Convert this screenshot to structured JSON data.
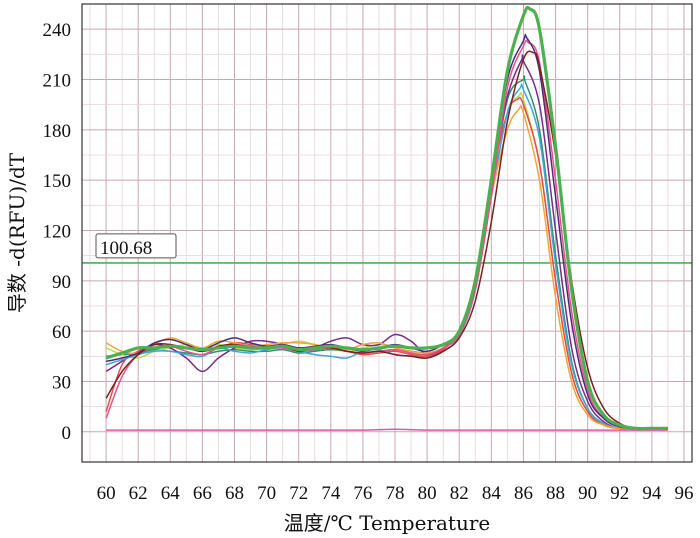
{
  "chart_data": {
    "type": "line",
    "title": "",
    "xlabel": "温度/℃ Temperature",
    "ylabel": "导数 -d(RFU)/dT",
    "xlim": [
      58.5,
      96.5
    ],
    "ylim": [
      -18,
      255
    ],
    "x_ticks": [
      60,
      62,
      64,
      66,
      68,
      70,
      72,
      74,
      76,
      78,
      80,
      82,
      84,
      86,
      88,
      90,
      92,
      94,
      96
    ],
    "y_ticks": [
      0,
      30,
      60,
      90,
      120,
      150,
      180,
      210,
      240
    ],
    "grid": true,
    "threshold": {
      "value": 100.68,
      "label": "100.68",
      "color": "#4caf50"
    },
    "series": [
      {
        "color": "#4caf50",
        "width": 3.2,
        "x": [
          60,
          61,
          62,
          63,
          64,
          65,
          66,
          67,
          68,
          69,
          70,
          71,
          72,
          73,
          74,
          75,
          76,
          77,
          78,
          79,
          80,
          81,
          82,
          83,
          84,
          85,
          86,
          86.4,
          87,
          88,
          89,
          90,
          91,
          92,
          93,
          94,
          95
        ],
        "y": [
          44,
          47,
          50,
          50,
          51,
          50,
          49,
          50,
          51,
          50,
          50,
          51,
          49,
          50,
          51,
          50,
          49,
          50,
          51,
          50,
          50,
          52,
          60,
          90,
          150,
          215,
          248,
          252,
          240,
          170,
          85,
          30,
          10,
          4,
          2,
          2,
          2
        ]
      },
      {
        "color": "#7b1f1f",
        "width": 1.5,
        "x": [
          60,
          61,
          62,
          63,
          64,
          65,
          66,
          67,
          68,
          69,
          70,
          71,
          72,
          73,
          74,
          75,
          76,
          77,
          78,
          79,
          80,
          81,
          82,
          83,
          84,
          85,
          86,
          86.6,
          87,
          88,
          89,
          90,
          91,
          92,
          93,
          94,
          95
        ],
        "y": [
          20,
          36,
          46,
          52,
          52,
          50,
          48,
          51,
          52,
          50,
          50,
          51,
          48,
          50,
          50,
          48,
          47,
          48,
          46,
          45,
          44,
          48,
          56,
          78,
          125,
          185,
          222,
          226,
          218,
          165,
          90,
          38,
          14,
          5,
          2,
          2,
          2
        ]
      },
      {
        "color": "#4a2c7a",
        "width": 1.5,
        "x": [
          60,
          61,
          62,
          63,
          64,
          65,
          66,
          67,
          68,
          69,
          70,
          71,
          72,
          73,
          74,
          75,
          76,
          77,
          78,
          79,
          80,
          81,
          82,
          83,
          84,
          85,
          86,
          86.2,
          87,
          88,
          89,
          90,
          91,
          92,
          93,
          94,
          95
        ],
        "y": [
          42,
          44,
          47,
          53,
          55,
          52,
          49,
          53,
          56,
          53,
          51,
          52,
          50,
          51,
          52,
          50,
          48,
          50,
          52,
          50,
          48,
          52,
          60,
          88,
          150,
          210,
          233,
          235,
          215,
          140,
          65,
          22,
          8,
          3,
          2,
          2,
          2
        ]
      },
      {
        "color": "#e8508a",
        "width": 1.5,
        "x": [
          60,
          61,
          62,
          63,
          64,
          65,
          66,
          67,
          68,
          69,
          70,
          71,
          72,
          73,
          74,
          75,
          76,
          77,
          78,
          79,
          80,
          81,
          82,
          83,
          84,
          85,
          86,
          86.3,
          87,
          88,
          89,
          90,
          91,
          92,
          93,
          94,
          95
        ],
        "y": [
          8,
          33,
          46,
          50,
          51,
          48,
          46,
          50,
          52,
          51,
          50,
          50,
          48,
          49,
          50,
          48,
          47,
          48,
          49,
          47,
          46,
          50,
          58,
          85,
          140,
          205,
          230,
          232,
          220,
          150,
          72,
          25,
          8,
          3,
          2,
          2,
          2
        ]
      },
      {
        "color": "#f2a43a",
        "width": 1.5,
        "x": [
          60,
          61,
          62,
          63,
          64,
          65,
          66,
          67,
          68,
          69,
          70,
          71,
          72,
          73,
          74,
          75,
          76,
          77,
          78,
          79,
          80,
          81,
          82,
          83,
          84,
          85,
          85.7,
          86,
          87,
          88,
          89,
          90,
          91,
          92,
          93,
          94,
          95
        ],
        "y": [
          53,
          48,
          47,
          52,
          56,
          53,
          50,
          54,
          53,
          51,
          52,
          53,
          53,
          52,
          50,
          49,
          52,
          53,
          50,
          48,
          47,
          50,
          58,
          85,
          140,
          180,
          192,
          190,
          150,
          80,
          30,
          10,
          4,
          2,
          2,
          2,
          2
        ]
      },
      {
        "color": "#3aa8d8",
        "width": 1.5,
        "x": [
          60,
          61,
          62,
          63,
          64,
          65,
          66,
          67,
          68,
          69,
          70,
          71,
          72,
          73,
          74,
          75,
          76,
          77,
          78,
          79,
          80,
          81,
          82,
          83,
          84,
          85,
          85.8,
          86,
          87,
          88,
          89,
          90,
          91,
          92,
          93,
          94,
          95
        ],
        "y": [
          40,
          43,
          46,
          48,
          48,
          46,
          45,
          50,
          48,
          47,
          49,
          50,
          48,
          46,
          45,
          44,
          48,
          49,
          46,
          45,
          44,
          48,
          57,
          84,
          140,
          190,
          205,
          204,
          175,
          100,
          40,
          14,
          5,
          2,
          2,
          2,
          2
        ]
      },
      {
        "color": "#e84a4a",
        "width": 1.5,
        "x": [
          60,
          61,
          62,
          63,
          64,
          65,
          66,
          67,
          68,
          69,
          70,
          71,
          72,
          73,
          74,
          75,
          76,
          77,
          78,
          79,
          80,
          81,
          82,
          83,
          84,
          85,
          85.6,
          86,
          87,
          88,
          89,
          90,
          91,
          92,
          93,
          94,
          95
        ],
        "y": [
          12,
          40,
          48,
          50,
          51,
          50,
          48,
          50,
          53,
          52,
          50,
          51,
          50,
          49,
          50,
          48,
          46,
          47,
          48,
          46,
          45,
          49,
          60,
          92,
          150,
          190,
          198,
          195,
          160,
          90,
          35,
          12,
          4,
          2,
          2,
          2,
          2
        ]
      },
      {
        "color": "#7a2a8a",
        "width": 1.5,
        "x": [
          60,
          61,
          62,
          63,
          64,
          65,
          66,
          67,
          68,
          69,
          70,
          71,
          72,
          73,
          74,
          75,
          76,
          77,
          78,
          79,
          80,
          81,
          82,
          83,
          84,
          85,
          85.9,
          86,
          87,
          88,
          89,
          90,
          91,
          92,
          93,
          94,
          95
        ],
        "y": [
          36,
          42,
          48,
          52,
          50,
          44,
          36,
          44,
          50,
          54,
          54,
          52,
          48,
          50,
          54,
          56,
          52,
          52,
          58,
          54,
          46,
          50,
          60,
          90,
          150,
          200,
          222,
          221,
          195,
          120,
          50,
          18,
          6,
          2,
          2,
          2,
          2
        ]
      },
      {
        "color": "#b8d94a",
        "width": 1.5,
        "x": [
          60,
          61,
          62,
          63,
          64,
          65,
          66,
          67,
          68,
          69,
          70,
          71,
          72,
          73,
          74,
          75,
          76,
          77,
          78,
          79,
          80,
          81,
          82,
          83,
          84,
          85,
          85.7,
          86,
          87,
          88,
          89,
          90,
          91,
          92,
          93,
          94,
          95
        ],
        "y": [
          50,
          46,
          44,
          48,
          50,
          52,
          50,
          52,
          50,
          49,
          50,
          52,
          54,
          52,
          50,
          48,
          50,
          52,
          50,
          47,
          46,
          50,
          60,
          92,
          148,
          190,
          200,
          198,
          160,
          90,
          35,
          12,
          4,
          2,
          2,
          2,
          2
        ]
      },
      {
        "color": "#2f8f6f",
        "width": 1.5,
        "x": [
          60,
          61,
          62,
          63,
          64,
          65,
          66,
          67,
          68,
          69,
          70,
          71,
          72,
          73,
          74,
          75,
          76,
          77,
          78,
          79,
          80,
          81,
          82,
          83,
          84,
          85,
          86,
          86.1,
          87,
          88,
          89,
          90,
          91,
          92,
          93,
          94,
          95
        ],
        "y": [
          45,
          46,
          47,
          49,
          48,
          47,
          46,
          48,
          49,
          48,
          48,
          49,
          47,
          48,
          49,
          48,
          47,
          48,
          49,
          48,
          47,
          50,
          58,
          86,
          142,
          198,
          210,
          209,
          180,
          105,
          42,
          14,
          5,
          2,
          2,
          2,
          2
        ]
      },
      {
        "color": "#e05aa8",
        "width": 1.5,
        "x": [
          60,
          62,
          64,
          66,
          68,
          70,
          72,
          74,
          76,
          78,
          80,
          82,
          84,
          86,
          88,
          90,
          92,
          94,
          95
        ],
        "y": [
          1,
          1,
          1,
          1,
          1,
          1,
          1,
          1,
          1,
          1.5,
          1,
          1,
          1,
          1,
          1,
          1,
          1,
          1,
          1
        ]
      }
    ]
  }
}
